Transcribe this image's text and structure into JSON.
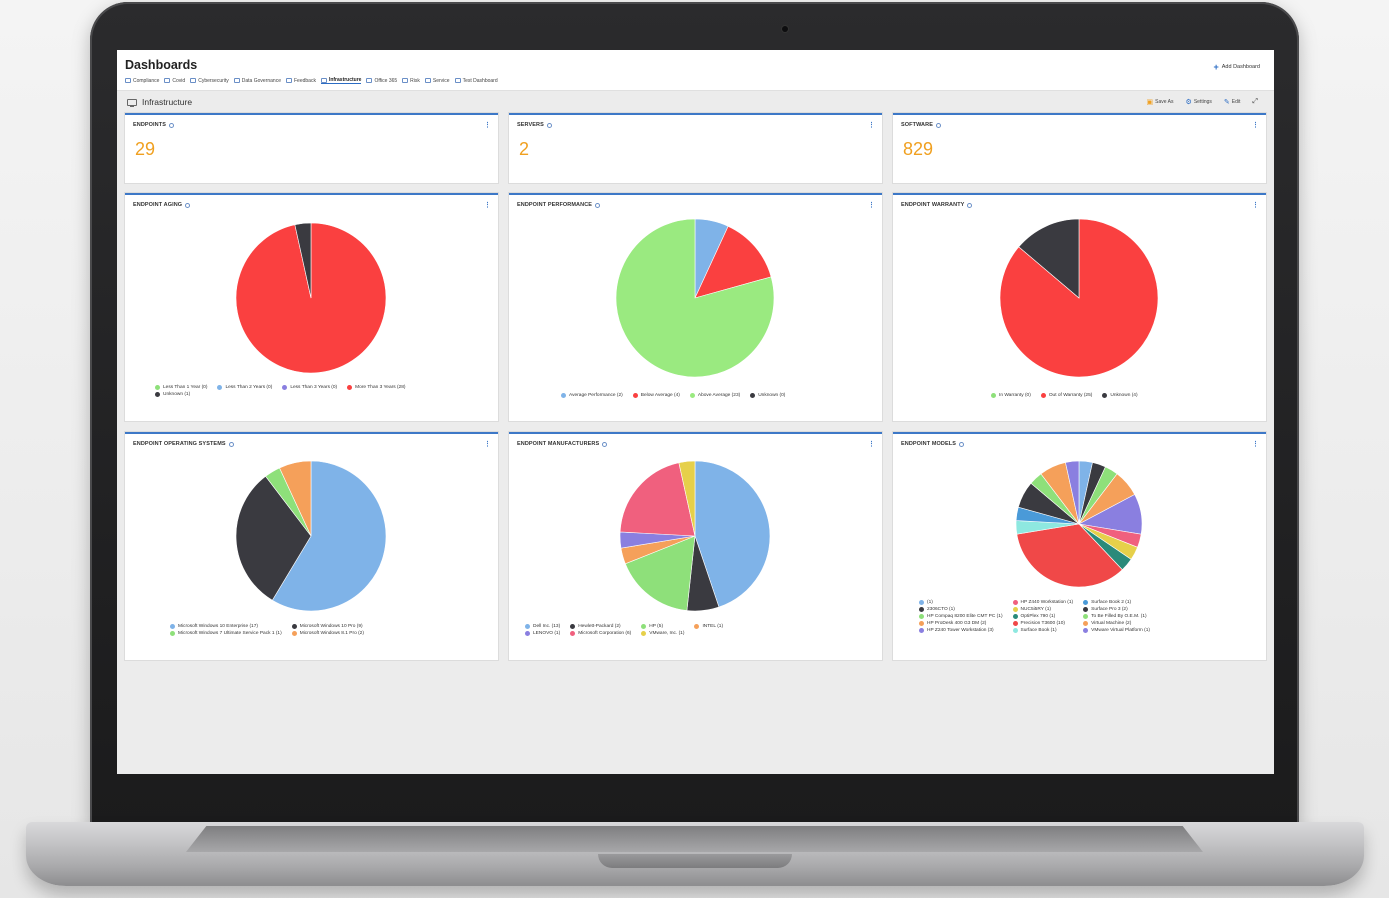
{
  "header": {
    "title": "Dashboards",
    "add_dashboard_label": "Add Dashboard",
    "tabs": [
      {
        "label": "Compliance"
      },
      {
        "label": "Covid"
      },
      {
        "label": "Cybersecurity"
      },
      {
        "label": "Data Governance"
      },
      {
        "label": "Feedback"
      },
      {
        "label": "Infrastructure"
      },
      {
        "label": "Office 365"
      },
      {
        "label": "Risk"
      },
      {
        "label": "Service"
      },
      {
        "label": "Test Dashboard"
      }
    ],
    "active_tab": "Infrastructure"
  },
  "toolbar": {
    "page_title": "Infrastructure",
    "save_as_label": "Save As",
    "settings_label": "Settings",
    "edit_label": "Edit"
  },
  "colors": {
    "accent": "#3d78c7",
    "metric": "#f0a020"
  },
  "metrics": [
    {
      "title": "ENDPOINTS",
      "value": "29"
    },
    {
      "title": "SERVERS",
      "value": "2"
    },
    {
      "title": "SOFTWARE",
      "value": "829"
    }
  ],
  "chart_data": [
    {
      "type": "pie",
      "title": "ENDPOINT AGING",
      "slices": [
        {
          "label": "Less Than 1 Year (0)",
          "value": 0,
          "color": "#8ee07a"
        },
        {
          "label": "Less Than 2 Years (0)",
          "value": 0,
          "color": "#7fb3e8"
        },
        {
          "label": "Less Than 3 Years (0)",
          "value": 0,
          "color": "#8a7fe0"
        },
        {
          "label": "More Than 3 Years (28)",
          "value": 28,
          "color": "#fa4040"
        },
        {
          "label": "Unknown (1)",
          "value": 1,
          "color": "#3a3a40"
        }
      ]
    },
    {
      "type": "pie",
      "title": "ENDPOINT PERFORMANCE",
      "slices": [
        {
          "label": "Average Performance (2)",
          "value": 2,
          "color": "#7fb3e8"
        },
        {
          "label": "Below Average (4)",
          "value": 4,
          "color": "#fa4040"
        },
        {
          "label": "Above Average (23)",
          "value": 23,
          "color": "#9aea80"
        },
        {
          "label": "Unknown (0)",
          "value": 0,
          "color": "#3a3a40"
        }
      ]
    },
    {
      "type": "pie",
      "title": "ENDPOINT WARRANTY",
      "slices": [
        {
          "label": "In Warranty (0)",
          "value": 0,
          "color": "#8ee07a"
        },
        {
          "label": "Out of Warranty (25)",
          "value": 25,
          "color": "#fa4040"
        },
        {
          "label": "Unknown (4)",
          "value": 4,
          "color": "#3a3a40"
        }
      ]
    },
    {
      "type": "pie",
      "title": "ENDPOINT OPERATING SYSTEMS",
      "slices": [
        {
          "label": "Microsoft Windows 10 Enterprise (17)",
          "value": 17,
          "color": "#7fb3e8"
        },
        {
          "label": "Microsoft Windows 10 Pro (9)",
          "value": 9,
          "color": "#3a3a40"
        },
        {
          "label": "Microsoft Windows 7 Ultimate Service Pack 1 (1)",
          "value": 1,
          "color": "#8ee07a"
        },
        {
          "label": "Microsoft Windows 8.1 Pro (2)",
          "value": 2,
          "color": "#f5a05a"
        }
      ]
    },
    {
      "type": "pie",
      "title": "ENDPOINT MANUFACTURERS",
      "slices": [
        {
          "label": "Dell Inc. (13)",
          "value": 13,
          "color": "#7fb3e8"
        },
        {
          "label": "Hewlett-Packard (2)",
          "value": 2,
          "color": "#3a3a40"
        },
        {
          "label": "HP (5)",
          "value": 5,
          "color": "#8ee07a"
        },
        {
          "label": "INTEL (1)",
          "value": 1,
          "color": "#f5a05a"
        },
        {
          "label": "LENOVO (1)",
          "value": 1,
          "color": "#8a7fe0"
        },
        {
          "label": "Microsoft Corporation (6)",
          "value": 6,
          "color": "#f0607e"
        },
        {
          "label": "VMware, Inc. (1)",
          "value": 1,
          "color": "#e6d04a"
        }
      ]
    },
    {
      "type": "pie",
      "title": "ENDPOINT MODELS",
      "slices": [
        {
          "label": "(1)",
          "value": 1,
          "color": "#7fb3e8"
        },
        {
          "label": "2306CTO (1)",
          "value": 1,
          "color": "#3a3a40"
        },
        {
          "label": "HP Compaq 8200 Elite CMT PC (1)",
          "value": 1,
          "color": "#8ee07a"
        },
        {
          "label": "HP ProDesk 400 G3 DM (2)",
          "value": 2,
          "color": "#f5a05a"
        },
        {
          "label": "HP Z240 Tower Workstation (3)",
          "value": 3,
          "color": "#8a7fe0"
        },
        {
          "label": "HP Z440 Workstation (1)",
          "value": 1,
          "color": "#f0607e"
        },
        {
          "label": "NUC5i5RY (1)",
          "value": 1,
          "color": "#e6d04a"
        },
        {
          "label": "OptiPlex 790 (1)",
          "value": 1,
          "color": "#2a8a7a"
        },
        {
          "label": "Precision T3600 (10)",
          "value": 10,
          "color": "#f04848"
        },
        {
          "label": "Surface Book (1)",
          "value": 1,
          "color": "#8ee8e0"
        },
        {
          "label": "Surface Book 2 (1)",
          "value": 1,
          "color": "#4a9ad8"
        },
        {
          "label": "Surface Pro 3 (2)",
          "value": 2,
          "color": "#3a3a40"
        },
        {
          "label": "To Be Filled By O.E.M. (1)",
          "value": 1,
          "color": "#8ee07a"
        },
        {
          "label": "Virtual Machine (2)",
          "value": 2,
          "color": "#f5a05a"
        },
        {
          "label": "VMware Virtual Platform (1)",
          "value": 1,
          "color": "#8a7fe0"
        }
      ]
    }
  ]
}
